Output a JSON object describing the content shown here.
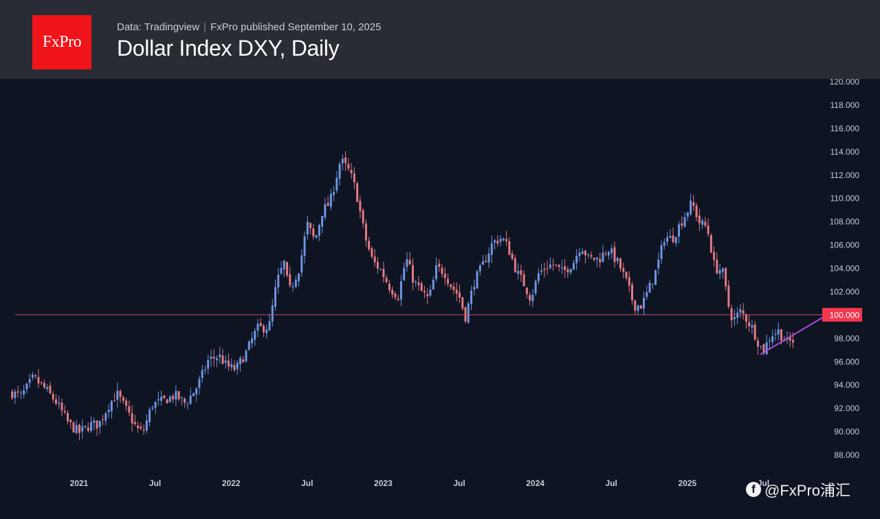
{
  "header": {
    "logo_text": "FxPro",
    "source": "Data: Tradingview",
    "publisher": "FxPro published September 10, 2025",
    "title": "Dollar Index DXY, Daily"
  },
  "watermark": {
    "icon": "facebook-icon",
    "handle": "@FxPro浦汇"
  },
  "colors": {
    "background": "#0e1422",
    "header_bg": "#2a2c35",
    "logo_bg": "#f0141a",
    "up": "#6f95e2",
    "down": "#e57a83",
    "level_line": "#c74d6b",
    "price_label_bg": "#f0384e",
    "trendline": "#b04ce0"
  },
  "chart_data": {
    "type": "candlestick",
    "title": "Dollar Index DXY, Daily",
    "ylim": [
      87,
      120.5
    ],
    "y_ticks": [
      "120.000",
      "118.000",
      "116.000",
      "114.000",
      "112.000",
      "110.000",
      "108.000",
      "106.000",
      "104.000",
      "102.000",
      "100.000",
      "98.000",
      "96.000",
      "94.000",
      "92.000",
      "90.000",
      "88.000"
    ],
    "x_ticks": [
      {
        "label": "2021",
        "t": 2021.0
      },
      {
        "label": "Jul",
        "t": 2021.5
      },
      {
        "label": "2022",
        "t": 2022.0
      },
      {
        "label": "Jul",
        "t": 2022.5
      },
      {
        "label": "2023",
        "t": 2023.0
      },
      {
        "label": "Jul",
        "t": 2023.5
      },
      {
        "label": "2024",
        "t": 2024.0
      },
      {
        "label": "Jul",
        "t": 2024.5
      },
      {
        "label": "2025",
        "t": 2025.0
      },
      {
        "label": "Jul",
        "t": 2025.5
      }
    ],
    "xlim": [
      2020.55,
      2025.95
    ],
    "horizontal_level": {
      "value": 100.0,
      "label": "100.000"
    },
    "trendline": {
      "from": {
        "t": 2025.48,
        "v": 96.6
      },
      "to": {
        "t": 2025.92,
        "v": 100.0
      }
    },
    "close_path": [
      [
        2020.56,
        93.3
      ],
      [
        2020.62,
        93.0
      ],
      [
        2020.7,
        94.6
      ],
      [
        2020.78,
        93.6
      ],
      [
        2020.85,
        92.5
      ],
      [
        2020.93,
        90.7
      ],
      [
        2021.0,
        89.9
      ],
      [
        2021.08,
        90.6
      ],
      [
        2021.13,
        90.6
      ],
      [
        2021.2,
        92.4
      ],
      [
        2021.25,
        93.2
      ],
      [
        2021.33,
        91.4
      ],
      [
        2021.38,
        90.2
      ],
      [
        2021.42,
        89.9
      ],
      [
        2021.48,
        92.3
      ],
      [
        2021.55,
        92.6
      ],
      [
        2021.63,
        93.1
      ],
      [
        2021.7,
        92.4
      ],
      [
        2021.78,
        93.9
      ],
      [
        2021.85,
        96.1
      ],
      [
        2021.92,
        96.5
      ],
      [
        2021.97,
        95.6
      ],
      [
        2022.03,
        95.3
      ],
      [
        2022.1,
        96.8
      ],
      [
        2022.17,
        98.8
      ],
      [
        2022.25,
        99.0
      ],
      [
        2022.3,
        102.8
      ],
      [
        2022.35,
        104.5
      ],
      [
        2022.38,
        101.9
      ],
      [
        2022.45,
        104.1
      ],
      [
        2022.5,
        107.8
      ],
      [
        2022.55,
        106.3
      ],
      [
        2022.6,
        108.9
      ],
      [
        2022.65,
        109.6
      ],
      [
        2022.72,
        113.3
      ],
      [
        2022.78,
        112.2
      ],
      [
        2022.82,
        110.7
      ],
      [
        2022.88,
        106.7
      ],
      [
        2022.93,
        104.6
      ],
      [
        2022.98,
        103.9
      ],
      [
        2023.05,
        102.2
      ],
      [
        2023.1,
        101.6
      ],
      [
        2023.15,
        104.9
      ],
      [
        2023.2,
        102.9
      ],
      [
        2023.25,
        102.0
      ],
      [
        2023.3,
        101.3
      ],
      [
        2023.35,
        104.0
      ],
      [
        2023.4,
        103.7
      ],
      [
        2023.45,
        102.4
      ],
      [
        2023.5,
        101.6
      ],
      [
        2023.54,
        99.8
      ],
      [
        2023.6,
        102.9
      ],
      [
        2023.65,
        104.1
      ],
      [
        2023.72,
        106.2
      ],
      [
        2023.78,
        106.6
      ],
      [
        2023.82,
        105.8
      ],
      [
        2023.88,
        103.6
      ],
      [
        2023.92,
        102.8
      ],
      [
        2023.97,
        101.4
      ],
      [
        2024.02,
        103.5
      ],
      [
        2024.08,
        104.2
      ],
      [
        2024.12,
        104.3
      ],
      [
        2024.18,
        103.6
      ],
      [
        2024.25,
        104.5
      ],
      [
        2024.3,
        106.0
      ],
      [
        2024.35,
        104.8
      ],
      [
        2024.42,
        104.8
      ],
      [
        2024.48,
        105.7
      ],
      [
        2024.55,
        104.3
      ],
      [
        2024.6,
        102.8
      ],
      [
        2024.65,
        100.8
      ],
      [
        2024.7,
        100.8
      ],
      [
        2024.75,
        102.3
      ],
      [
        2024.8,
        104.0
      ],
      [
        2024.85,
        106.7
      ],
      [
        2024.9,
        106.5
      ],
      [
        2024.97,
        108.2
      ],
      [
        2025.03,
        109.6
      ],
      [
        2025.08,
        107.9
      ],
      [
        2025.13,
        107.5
      ],
      [
        2025.18,
        104.0
      ],
      [
        2025.23,
        103.8
      ],
      [
        2025.27,
        100.8
      ],
      [
        2025.3,
        99.5
      ],
      [
        2025.35,
        100.3
      ],
      [
        2025.38,
        99.8
      ],
      [
        2025.43,
        98.8
      ],
      [
        2025.47,
        97.5
      ],
      [
        2025.5,
        96.9
      ],
      [
        2025.55,
        98.3
      ],
      [
        2025.6,
        98.6
      ],
      [
        2025.65,
        97.6
      ],
      [
        2025.7,
        97.8
      ]
    ]
  }
}
